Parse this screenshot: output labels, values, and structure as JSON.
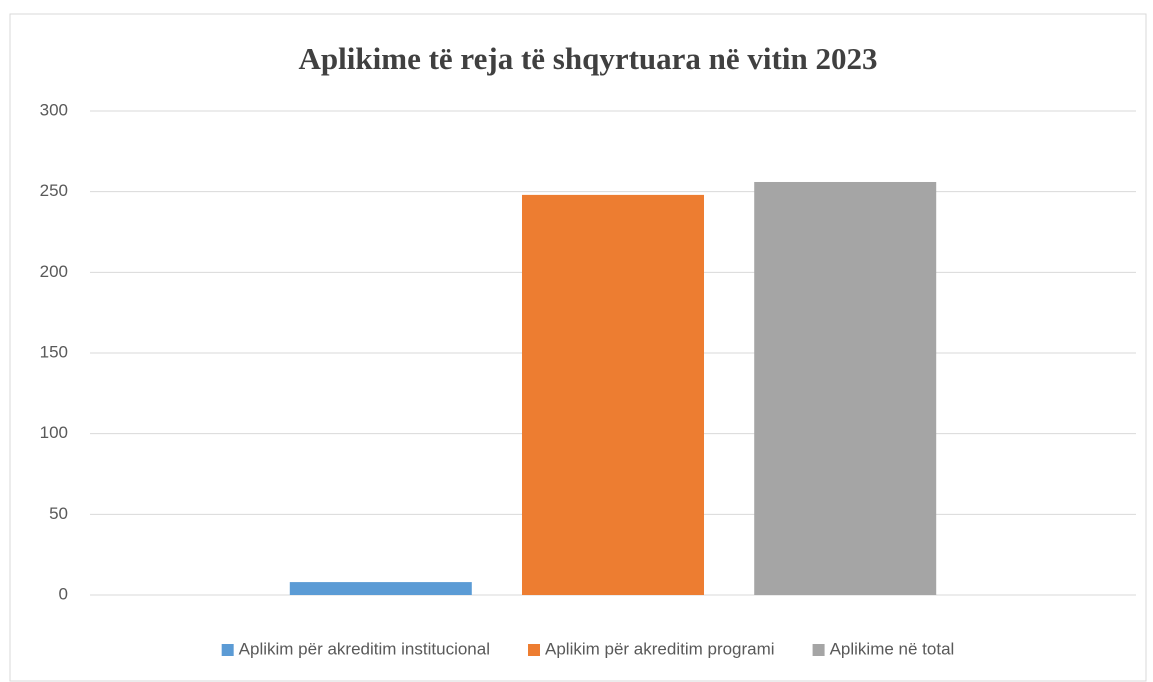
{
  "chart_data": {
    "type": "bar",
    "title": "Aplikime të reja të shqyrtuara  në vitin 2023",
    "categories": [
      null
    ],
    "series": [
      {
        "name": "Aplikim për akreditim institucional",
        "color": "#5b9bd5",
        "values": [
          8
        ]
      },
      {
        "name": "Aplikim për akreditim programi",
        "color": "#ed7d31",
        "values": [
          248
        ]
      },
      {
        "name": "Aplikime në total",
        "color": "#a5a5a5",
        "values": [
          256
        ]
      }
    ],
    "ylim": [
      0,
      300
    ],
    "yticks": [
      0,
      50,
      100,
      150,
      200,
      250,
      300
    ],
    "grid": true,
    "legend": "bottom"
  }
}
